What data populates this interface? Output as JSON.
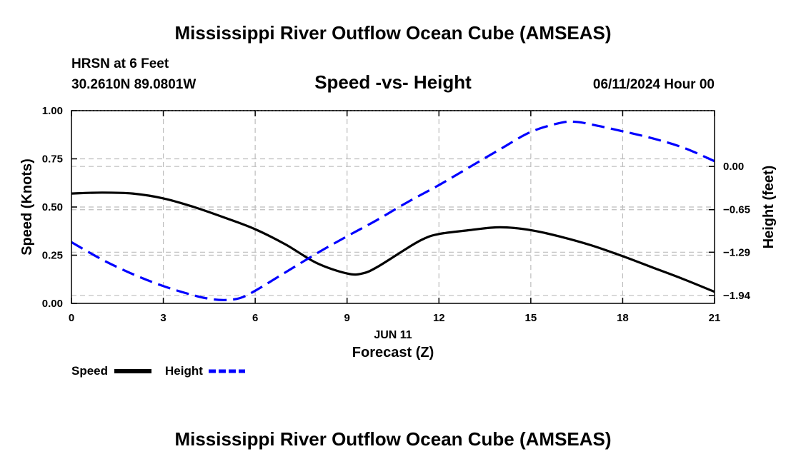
{
  "header": {
    "title": "Mississippi River Outflow Ocean Cube (AMSEAS)",
    "station": "HRSN at 6 Feet",
    "coordinates": "30.2610N  89.0801W",
    "plot_title": "Speed -vs- Height",
    "datetime": "06/11/2024 Hour 00",
    "footer_title": "Mississippi River Outflow Ocean Cube (AMSEAS)"
  },
  "chart_data": {
    "type": "line",
    "title": "Speed -vs- Height",
    "xlabel": "Forecast (Z)",
    "date_label": "JUN 11",
    "ylabel_left": "Speed (Knots)",
    "ylabel_right": "Height (feet)",
    "xlim": [
      0,
      21
    ],
    "ylim_left": [
      0,
      1.0
    ],
    "ylim_right": [
      -2.06,
      0.84
    ],
    "x_ticks": [
      0,
      3,
      6,
      9,
      12,
      15,
      18,
      21
    ],
    "x_tick_labels": [
      "0",
      "3",
      "6",
      "9",
      "12",
      "15",
      "18",
      "21"
    ],
    "left_ticks": [
      0,
      0.25,
      0.5,
      0.75,
      1.0
    ],
    "left_tick_labels": [
      "0.00",
      "0.25",
      "0.50",
      "0.75",
      "1.00"
    ],
    "right_ticks": [
      0.0,
      -0.65,
      -1.29,
      -1.94
    ],
    "right_tick_labels": [
      "0.00",
      "−0.65",
      "−1.29",
      "−1.94"
    ],
    "grid": true,
    "series": [
      {
        "name": "Speed",
        "axis": "left",
        "color": "#000000",
        "style": "solid",
        "x": [
          0,
          1,
          2,
          3,
          4,
          5,
          6,
          7,
          8,
          9,
          9.5,
          10,
          11,
          11.5,
          12,
          13,
          14,
          15,
          16,
          17,
          18,
          19,
          20,
          21
        ],
        "values": [
          0.57,
          0.575,
          0.57,
          0.545,
          0.5,
          0.445,
          0.385,
          0.305,
          0.21,
          0.155,
          0.155,
          0.19,
          0.29,
          0.335,
          0.36,
          0.38,
          0.395,
          0.38,
          0.345,
          0.3,
          0.245,
          0.185,
          0.125,
          0.06
        ]
      },
      {
        "name": "Height",
        "axis": "right",
        "color": "#0000ff",
        "style": "dashed",
        "x": [
          0,
          1,
          2,
          3,
          4,
          4.5,
          5,
          5.5,
          6,
          7,
          8,
          9,
          10,
          11,
          12,
          13,
          14,
          15,
          16,
          16.5,
          17,
          18,
          19,
          20,
          21
        ],
        "values": [
          -1.14,
          -1.4,
          -1.62,
          -1.8,
          -1.94,
          -1.99,
          -2.01,
          -1.98,
          -1.87,
          -1.59,
          -1.31,
          -1.05,
          -0.8,
          -0.53,
          -0.28,
          -0.01,
          0.26,
          0.52,
          0.66,
          0.67,
          0.63,
          0.53,
          0.42,
          0.28,
          0.08
        ]
      }
    ],
    "legend": {
      "placement": "bottom-left",
      "entries": [
        {
          "label": "Speed",
          "color": "#000000",
          "style": "solid"
        },
        {
          "label": "Height",
          "color": "#0000ff",
          "style": "dashed"
        }
      ]
    }
  }
}
